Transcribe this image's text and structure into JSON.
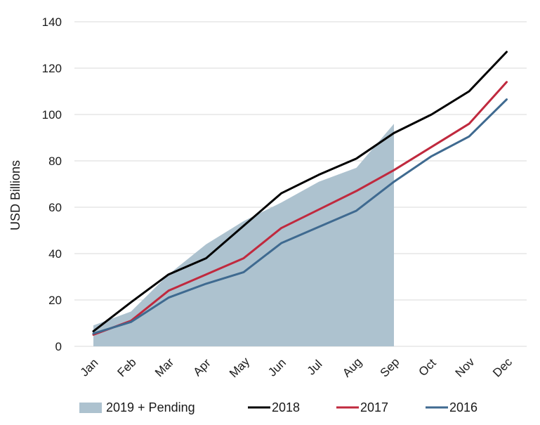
{
  "chart_data": {
    "type": "line",
    "categories": [
      "Jan",
      "Feb",
      "Mar",
      "Apr",
      "May",
      "Jun",
      "Jul",
      "Aug",
      "Sep",
      "Oct",
      "Nov",
      "Dec"
    ],
    "ylabel": "USD Billions",
    "ylim": [
      0,
      140
    ],
    "yticks": [
      0,
      20,
      40,
      60,
      80,
      100,
      120,
      140
    ],
    "grid": true,
    "legend_position": "bottom",
    "area_series": {
      "name": "2019 + Pending",
      "color": "#adc2cf",
      "values": [
        9,
        15,
        31,
        44,
        54,
        62,
        71,
        77,
        96
      ]
    },
    "series": [
      {
        "name": "2018",
        "color": "#000000",
        "values": [
          6.5,
          19,
          31,
          38,
          52,
          66,
          74,
          81,
          92,
          100,
          110,
          127
        ]
      },
      {
        "name": "2017",
        "color": "#c0293e",
        "values": [
          5,
          11,
          24,
          31,
          38,
          51,
          59,
          67,
          76,
          86,
          96,
          114
        ]
      },
      {
        "name": "2016",
        "color": "#3f6a90",
        "values": [
          5.5,
          10.5,
          21,
          27,
          32,
          44.5,
          51.5,
          58.5,
          71,
          82,
          90.5,
          106.5
        ]
      }
    ]
  }
}
